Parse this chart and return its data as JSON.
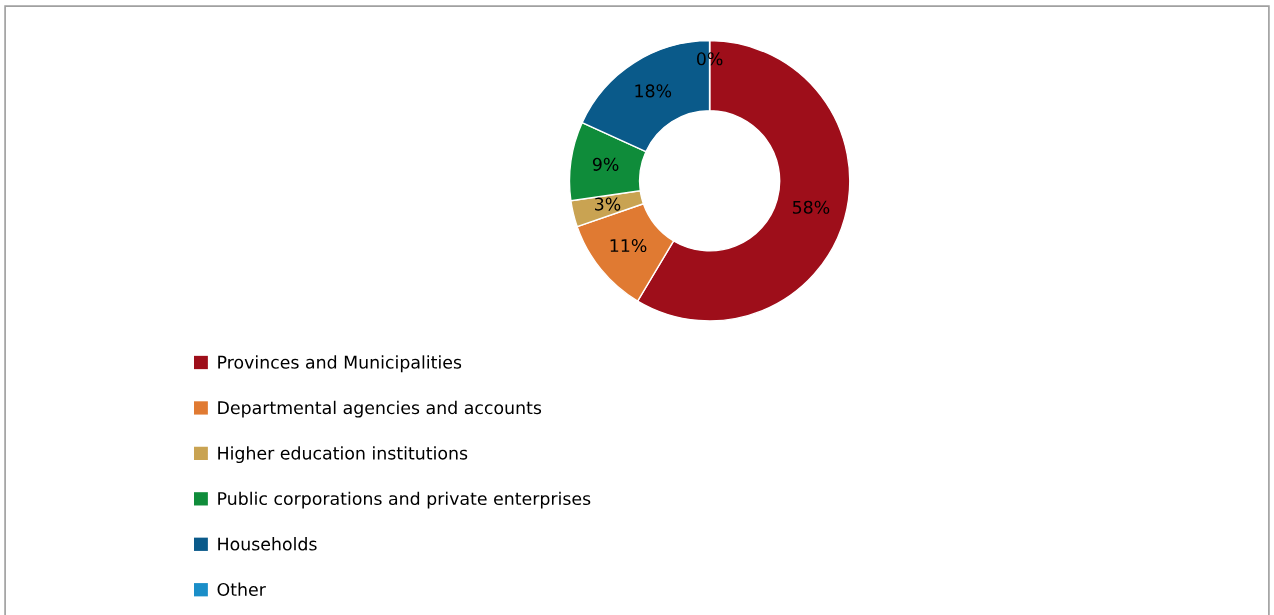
{
  "chart_data": {
    "type": "donut",
    "categories": [
      "Provinces and Municipalities",
      "Departmental agencies and accounts",
      "Higher education institutions",
      "Public corporations and private enterprises",
      "Households",
      "Other"
    ],
    "values": [
      58,
      11,
      3,
      9,
      18,
      0
    ],
    "colors": [
      "#9e0e1a",
      "#e07a32",
      "#c9a352",
      "#0f8c3a",
      "#0a5a8a",
      "#1a8ec8"
    ],
    "value_labels": [
      "58%",
      "11%",
      "3%",
      "9%",
      "18%",
      "0%"
    ],
    "legend": "bottom left"
  }
}
